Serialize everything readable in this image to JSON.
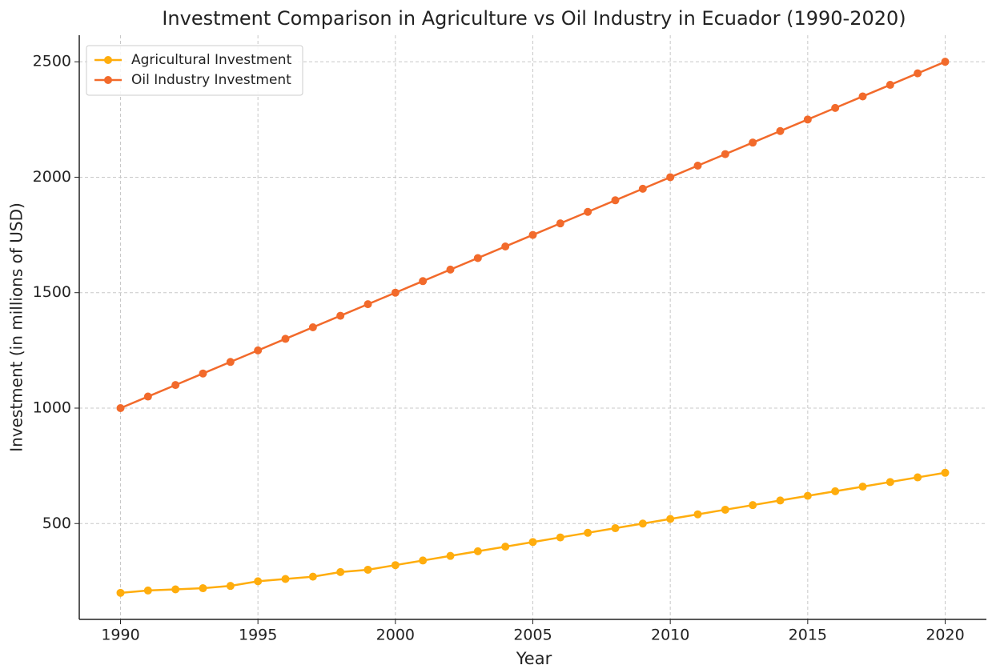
{
  "chart_data": {
    "type": "line",
    "title": "Investment Comparison in Agriculture vs Oil Industry in Ecuador (1990-2020)",
    "xlabel": "Year",
    "ylabel": "Investment (in millions of USD)",
    "x": [
      1990,
      1991,
      1992,
      1993,
      1994,
      1995,
      1996,
      1997,
      1998,
      1999,
      2000,
      2001,
      2002,
      2003,
      2004,
      2005,
      2006,
      2007,
      2008,
      2009,
      2010,
      2011,
      2012,
      2013,
      2014,
      2015,
      2016,
      2017,
      2018,
      2019,
      2020
    ],
    "series": [
      {
        "name": "Agricultural Investment",
        "color": "#ffad0d",
        "values": [
          200,
          210,
          215,
          220,
          230,
          250,
          260,
          270,
          290,
          300,
          320,
          340,
          360,
          380,
          400,
          420,
          440,
          460,
          480,
          500,
          520,
          540,
          560,
          580,
          600,
          620,
          640,
          660,
          680,
          700,
          720
        ]
      },
      {
        "name": "Oil Industry Investment",
        "color": "#f26a2b",
        "values": [
          1000,
          1050,
          1100,
          1150,
          1200,
          1250,
          1300,
          1350,
          1400,
          1450,
          1500,
          1550,
          1600,
          1650,
          1700,
          1750,
          1800,
          1850,
          1900,
          1950,
          2000,
          2050,
          2100,
          2150,
          2200,
          2250,
          2300,
          2350,
          2400,
          2450,
          2500
        ]
      }
    ],
    "xlim": [
      1988.5,
      2021.5
    ],
    "xticks": [
      1990,
      1995,
      2000,
      2005,
      2010,
      2015,
      2020
    ],
    "ylim": [
      85,
      2615
    ],
    "yticks": [
      500,
      1000,
      1500,
      2000,
      2500
    ],
    "grid": true,
    "legend": "upper left"
  }
}
